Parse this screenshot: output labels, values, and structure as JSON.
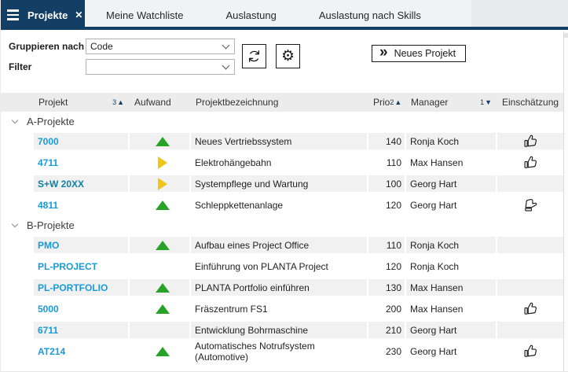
{
  "colors": {
    "navy": "#123F63",
    "link_blue": "#189BD8",
    "green": "#28A228",
    "yellow": "#F0C419",
    "stripe": "#F1F1F1",
    "header_bg": "#ECECEC"
  },
  "tabs": {
    "active_label": "Projekte",
    "items": [
      "Meine Watchliste",
      "Auslastung",
      "Auslastung nach Skills"
    ]
  },
  "toolbar": {
    "group_by_label": "Gruppieren nach",
    "group_by_value": "Code",
    "filter_label": "Filter",
    "filter_value": "",
    "new_project_label": "Neues Projekt"
  },
  "icons": {
    "gear": "⚙",
    "close": "✕",
    "double_chevron": "»",
    "sort_asc": "▲",
    "sort_desc": "▼"
  },
  "table": {
    "columns": [
      {
        "label": "Projekt",
        "sort_rank": "3",
        "sort_dir": "asc"
      },
      {
        "label": "Aufwand"
      },
      {
        "label": "Projektbezeichnung"
      },
      {
        "label": "Prio",
        "sort_rank": "2",
        "sort_dir": "asc"
      },
      {
        "label": "Manager",
        "sort_rank": "1",
        "sort_dir": "desc"
      },
      {
        "label": "Einschätzung"
      }
    ],
    "groups": [
      {
        "label": "A-Projekte",
        "rows": [
          {
            "id": "7000",
            "trend": "up",
            "name": "Neues Vertriebssystem",
            "prio": "140",
            "manager": "Ronja Koch",
            "rating": "thumb-up"
          },
          {
            "id": "4711",
            "trend": "right",
            "name": "Elektrohängebahn",
            "prio": "110",
            "manager": "Max Hansen",
            "rating": "thumb-up"
          },
          {
            "id": "S+W 20XX",
            "id_color": "#0E81A6",
            "trend": "right",
            "name": "Systempflege und Wartung",
            "prio": "100",
            "manager": "Georg Hart",
            "rating": ""
          },
          {
            "id": "4811",
            "trend": "up",
            "name": "Schleppkettenanlage",
            "prio": "120",
            "manager": "Georg Hart",
            "rating": "thumb-side"
          }
        ]
      },
      {
        "label": "B-Projekte",
        "rows": [
          {
            "id": "PMO",
            "trend": "up",
            "name": "Aufbau eines Project Office",
            "prio": "110",
            "manager": "Ronja Koch",
            "rating": ""
          },
          {
            "id": "PL-PROJECT",
            "trend": "",
            "name": "Einführung von PLANTA Project",
            "prio": "120",
            "manager": "Ronja Koch",
            "rating": ""
          },
          {
            "id": "PL-PORTFOLIO",
            "trend": "up",
            "name": "PLANTA Portfolio einführen",
            "prio": "130",
            "manager": "Max Hansen",
            "rating": ""
          },
          {
            "id": "5000",
            "trend": "up",
            "name": "Fräszentrum FS1",
            "prio": "200",
            "manager": "Max Hansen",
            "rating": "thumb-up"
          },
          {
            "id": "6711",
            "trend": "",
            "name": "Entwicklung Bohrmaschine",
            "prio": "210",
            "manager": "Georg Hart",
            "rating": ""
          },
          {
            "id": "AT214",
            "trend": "up",
            "name": "Automatisches Notrufsystem (Automotive)",
            "prio": "230",
            "manager": "Georg Hart",
            "rating": "thumb-up"
          }
        ]
      }
    ]
  }
}
